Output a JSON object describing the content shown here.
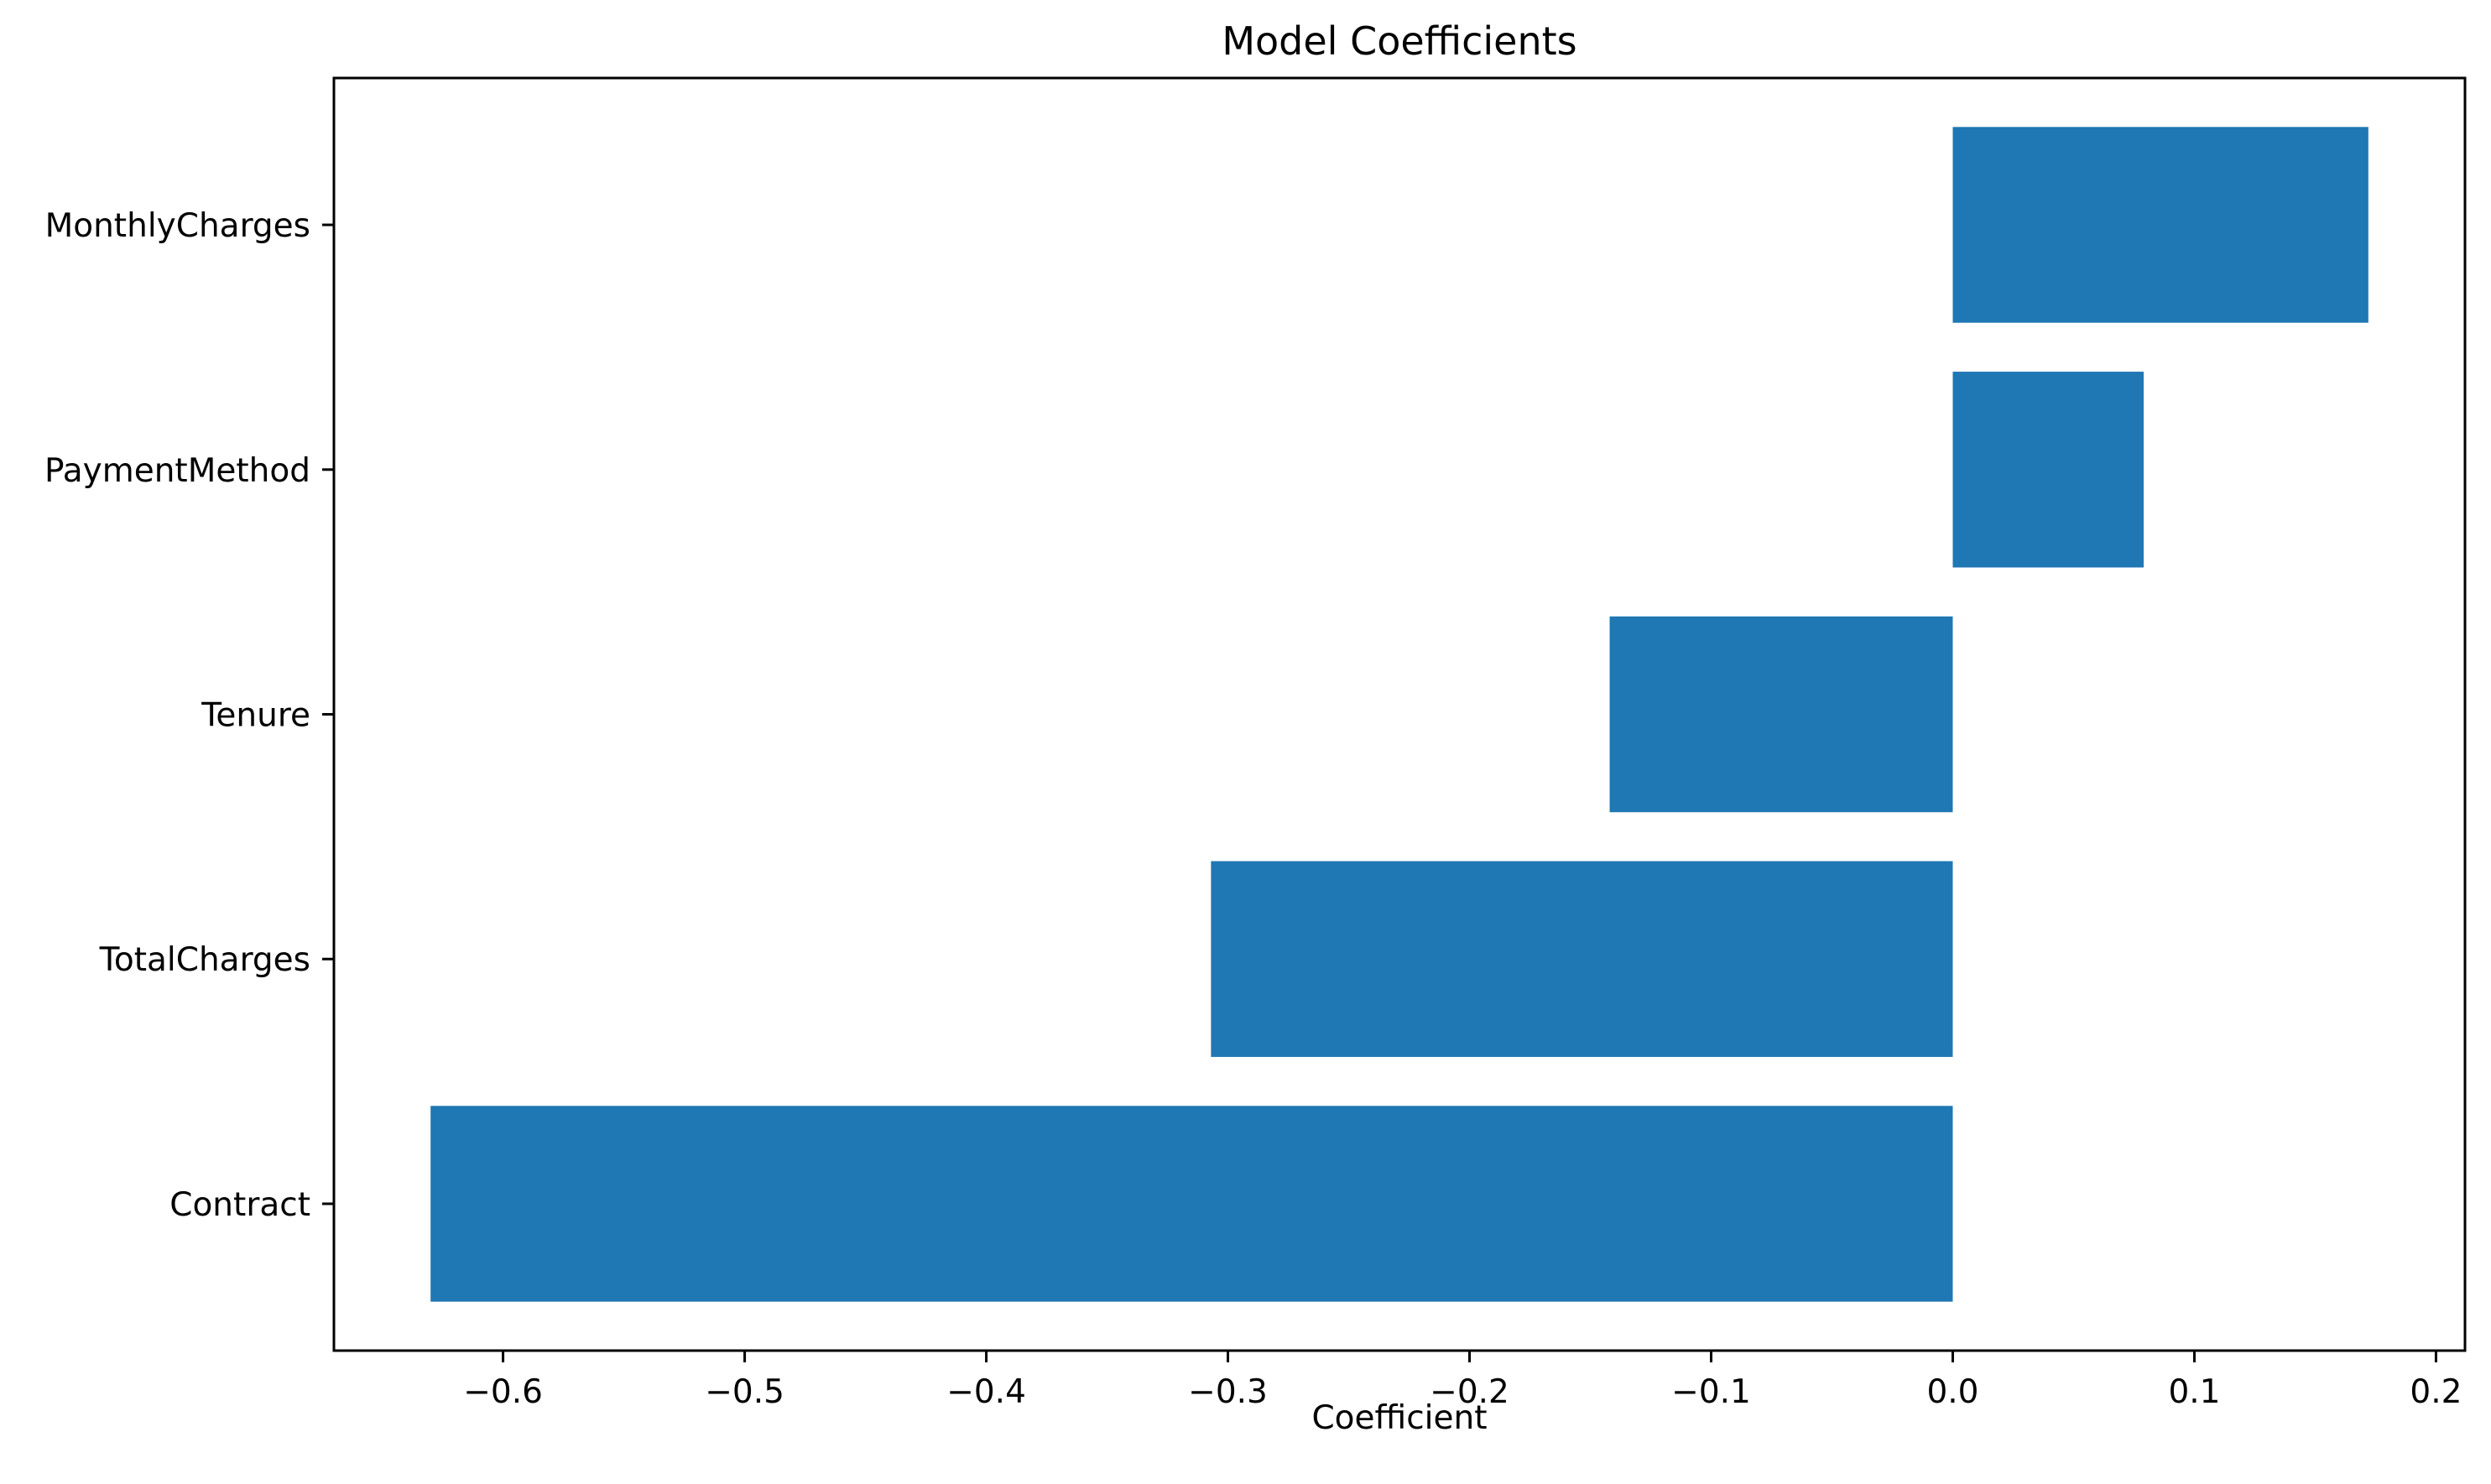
{
  "chart_data": {
    "type": "bar",
    "orientation": "horizontal",
    "title": "Model Coefficients",
    "xlabel": "Coefficient",
    "ylabel": "",
    "categories": [
      "Contract",
      "TotalCharges",
      "Tenure",
      "PaymentMethod",
      "MonthlyCharges"
    ],
    "values": [
      -0.63,
      -0.307,
      -0.142,
      0.079,
      0.172
    ],
    "xlim": [
      -0.67,
      0.212
    ],
    "xticks": [
      -0.6,
      -0.5,
      -0.4,
      -0.3,
      -0.2,
      -0.1,
      0.0,
      0.1,
      0.2
    ],
    "xtick_labels": [
      "−0.6",
      "−0.5",
      "−0.4",
      "−0.3",
      "−0.2",
      "−0.1",
      "0.0",
      "0.1",
      "0.2"
    ],
    "bar_color": "#1f77b4",
    "grid": false,
    "legend": "none"
  }
}
